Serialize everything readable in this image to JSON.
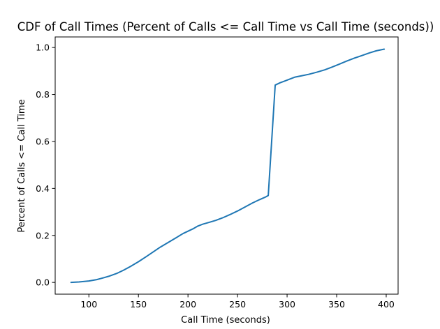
{
  "chart_data": {
    "type": "line",
    "title": "CDF of Call Times (Percent of Calls <= Call Time vs Call Time (seconds))",
    "xlabel": "Call Time (seconds)",
    "ylabel": "Percent of Calls <= Call Time",
    "xlim": [
      66,
      412
    ],
    "ylim": [
      -0.05,
      1.045
    ],
    "x_ticks": [
      100,
      150,
      200,
      250,
      300,
      350,
      400
    ],
    "x_tick_labels": [
      "100",
      "150",
      "200",
      "250",
      "300",
      "350",
      "400"
    ],
    "y_ticks": [
      0.0,
      0.2,
      0.4,
      0.6,
      0.8,
      1.0
    ],
    "y_tick_labels": [
      "0.0",
      "0.2",
      "0.4",
      "0.6",
      "0.8",
      "1.0"
    ],
    "grid": false,
    "series": [
      {
        "color": "#1f77b4",
        "x": [
          82,
          90,
          100,
          108,
          115,
          120,
          128,
          135,
          142,
          150,
          158,
          165,
          172,
          180,
          188,
          195,
          200,
          205,
          210,
          215,
          220,
          228,
          235,
          242,
          250,
          258,
          265,
          272,
          278,
          281,
          288,
          293,
          298,
          303,
          308,
          315,
          322,
          330,
          338,
          345,
          352,
          360,
          368,
          375,
          383,
          390,
          398
        ],
        "y": [
          0.0,
          0.002,
          0.006,
          0.012,
          0.02,
          0.026,
          0.038,
          0.052,
          0.068,
          0.088,
          0.11,
          0.13,
          0.15,
          0.17,
          0.19,
          0.208,
          0.218,
          0.228,
          0.24,
          0.248,
          0.254,
          0.264,
          0.275,
          0.288,
          0.304,
          0.322,
          0.338,
          0.352,
          0.363,
          0.37,
          0.84,
          0.85,
          0.858,
          0.866,
          0.874,
          0.88,
          0.886,
          0.895,
          0.905,
          0.916,
          0.928,
          0.942,
          0.955,
          0.965,
          0.977,
          0.986,
          0.993
        ]
      }
    ]
  }
}
